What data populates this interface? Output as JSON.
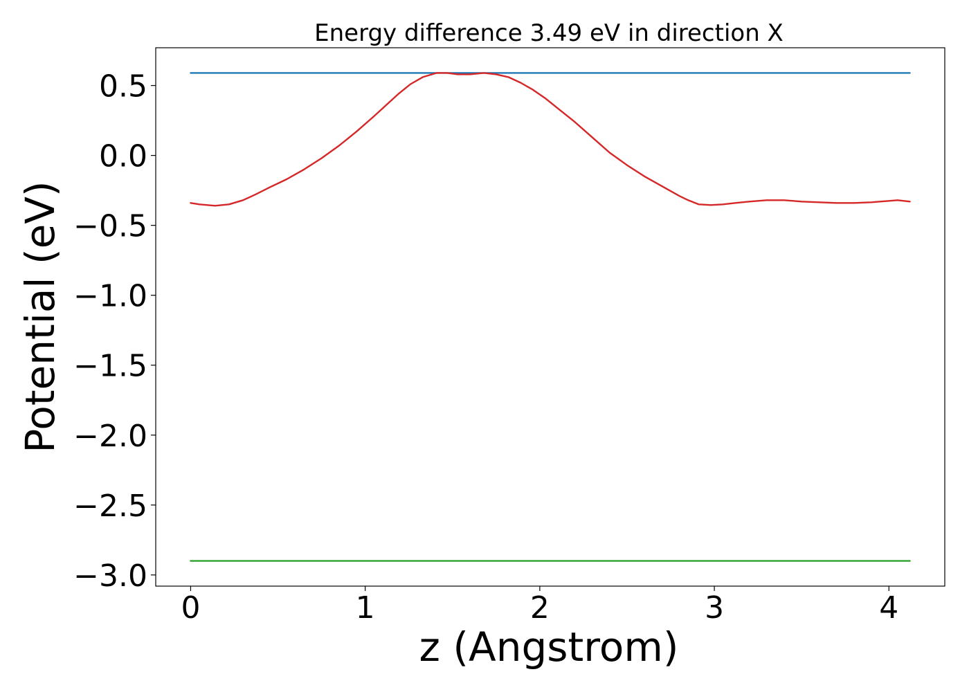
{
  "chart_data": {
    "type": "line",
    "title": "Energy difference 3.49 eV in direction X",
    "xlabel": "z (Angstrom)",
    "ylabel": "Potential (eV)",
    "xlim": [
      -0.2,
      4.32
    ],
    "ylim": [
      -3.08,
      0.77
    ],
    "xticks": [
      0,
      1,
      2,
      3,
      4
    ],
    "xtick_labels": [
      "0",
      "1",
      "2",
      "3",
      "4"
    ],
    "yticks": [
      0.5,
      0.0,
      -0.5,
      -1.0,
      -1.5,
      -2.0,
      -2.5,
      -3.0
    ],
    "ytick_labels": [
      "0.5",
      "0.0",
      "−0.5",
      "−1.0",
      "−1.5",
      "−2.0",
      "−2.5",
      "−3.0"
    ],
    "grid": false,
    "series": [
      {
        "color": "#1f77b4",
        "x": [
          0,
          4.12
        ],
        "y": [
          0.59,
          0.59
        ]
      },
      {
        "color": "#2ca02c",
        "x": [
          0,
          4.12
        ],
        "y": [
          -2.9,
          -2.9
        ]
      },
      {
        "color": "#d62728",
        "x": [
          0,
          0.05,
          0.14,
          0.22,
          0.3,
          0.37,
          0.45,
          0.55,
          0.65,
          0.75,
          0.85,
          0.95,
          1.05,
          1.12,
          1.19,
          1.26,
          1.33,
          1.41,
          1.47,
          1.53,
          1.6,
          1.68,
          1.75,
          1.82,
          1.89,
          1.96,
          2.03,
          2.1,
          2.2,
          2.3,
          2.4,
          2.5,
          2.6,
          2.7,
          2.8,
          2.85,
          2.91,
          2.98,
          3.05,
          3.12,
          3.2,
          3.3,
          3.4,
          3.5,
          3.6,
          3.7,
          3.8,
          3.9,
          4.0,
          4.05,
          4.12
        ],
        "y": [
          -0.34,
          -0.35,
          -0.36,
          -0.35,
          -0.32,
          -0.28,
          -0.23,
          -0.17,
          -0.1,
          -0.02,
          0.07,
          0.17,
          0.28,
          0.36,
          0.44,
          0.51,
          0.56,
          0.59,
          0.59,
          0.58,
          0.58,
          0.59,
          0.58,
          0.56,
          0.52,
          0.47,
          0.41,
          0.34,
          0.24,
          0.13,
          0.02,
          -0.07,
          -0.15,
          -0.22,
          -0.29,
          -0.32,
          -0.35,
          -0.355,
          -0.35,
          -0.34,
          -0.33,
          -0.32,
          -0.32,
          -0.33,
          -0.335,
          -0.34,
          -0.34,
          -0.335,
          -0.325,
          -0.32,
          -0.33
        ]
      }
    ]
  }
}
